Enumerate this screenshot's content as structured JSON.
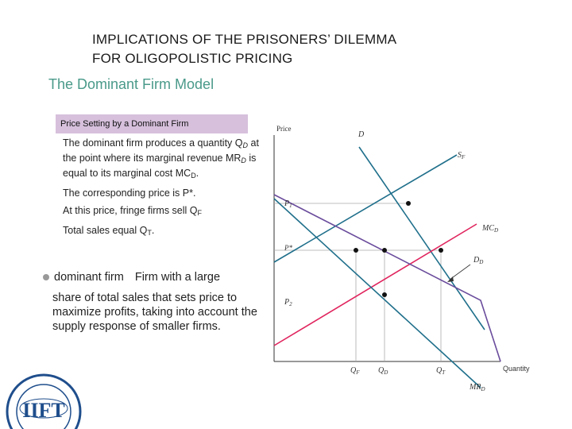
{
  "slide": {
    "title_line1": "IMPLICATIONS OF THE PRISONERS’ DILEMMA",
    "title_line2": "FOR OLIGOPOLISTIC PRICING",
    "subtitle": "The Dominant Firm Model",
    "caption": "Price Setting by a Dominant Firm",
    "para1_a": "The dominant firm produces a quantity Q",
    "para1_sub1": "D",
    "para1_b": " at the point where its marginal revenue MR",
    "para1_sub2": "D",
    "para1_c": " is equal to its marginal cost MC",
    "para1_sub3": "D",
    "para1_d": ".",
    "para2": "The corresponding price is P*.",
    "para3_a": "At this price, fringe firms sell Q",
    "para3_sub": "F",
    "para4_a": "Total sales equal Q",
    "para4_sub": "T",
    "para4_b": ".",
    "definition_term": "dominant firm",
    "definition_lead": "Firm with a large",
    "definition_body": "share of total sales that sets price to maximize profits, taking into account the supply response of smaller firms."
  },
  "chart_data": {
    "type": "diagram",
    "axes": {
      "y_label": "Price",
      "x_label": "Quantity"
    },
    "price_labels": [
      "P1",
      "P*",
      "P2"
    ],
    "quantity_labels": [
      "QF",
      "QD",
      "QT"
    ],
    "curves": [
      {
        "label": "D",
        "color": "#1f6f8b"
      },
      {
        "label": "SF",
        "color": "#1f6f8b"
      },
      {
        "label": "MCD",
        "color": "#e0245e"
      },
      {
        "label": "DD",
        "color": "#6a4c9c"
      },
      {
        "label": "MRD",
        "color": "#1f6f8b"
      }
    ],
    "colors": {
      "demand": "#1f6f8b",
      "mc": "#e0245e",
      "dominant": "#6a4c9c",
      "guides": "#aaaaaa"
    }
  },
  "logo": {
    "text": "IIFT"
  }
}
